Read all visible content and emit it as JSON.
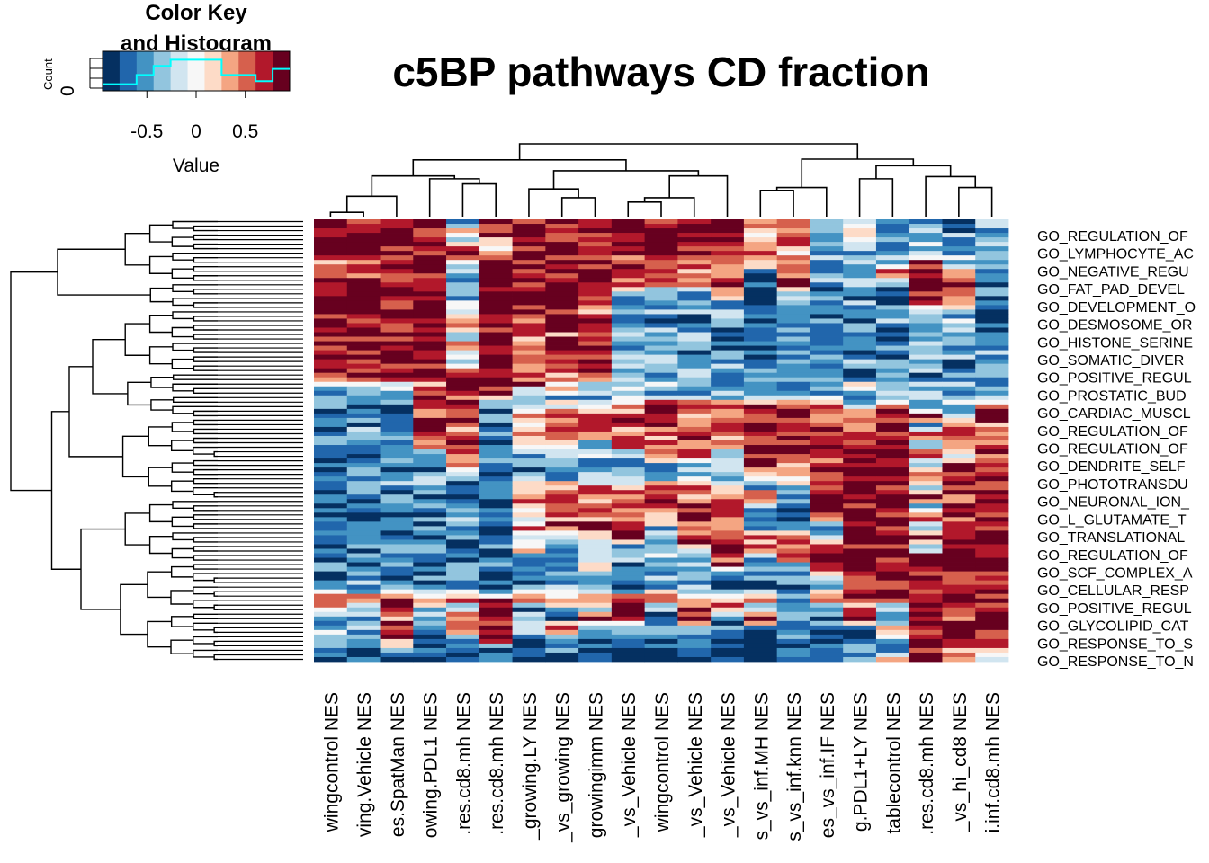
{
  "chart_data": {
    "type": "heatmap",
    "title": "c5BP pathways CD fraction",
    "color_key": {
      "title_line1": "Color Key",
      "title_line2": "and Histogram",
      "xlabel": "Value",
      "ylabel": "Count",
      "y_tick": "0",
      "x_ticks": [
        "-0.5",
        "0",
        "0.5"
      ],
      "x_tick_values": [
        -0.5,
        0,
        0.5
      ],
      "range": [
        -0.95,
        0.95
      ],
      "palette": [
        "#053061",
        "#2166ac",
        "#4393c3",
        "#92c5de",
        "#d1e5f0",
        "#f7f7f7",
        "#fddbc7",
        "#f4a582",
        "#d6604d",
        "#b2182b",
        "#67001f"
      ],
      "histogram_line_color": "#00ffff"
    },
    "columns": [
      "wingcontrol NES",
      "ving.Vehicle NES",
      "es.SpatMan NES",
      "owing.PDL1 NES",
      ".res.cd8.mh NES",
      ".res.cd8.mh NES",
      "_growing.LY NES",
      "_vs_growing NES",
      "growingimm NES",
      "_vs_Vehicle NES",
      "wingcontrol NES",
      "_vs_Vehicle NES",
      "_vs_Vehicle NES",
      "s_vs_inf.MH NES",
      "s_vs_inf.knn NES",
      "es_vs_inf.IF NES",
      "g.PDL1+LY NES",
      "tablecontrol NES",
      ".res.cd8.mh NES",
      "_vs_hi_cd8 NES",
      "i.inf.cd8.mh NES"
    ],
    "row_labels": [
      "GO_REGULATION_OF",
      "GO_LYMPHOCYTE_AC",
      "GO_NEGATIVE_REGU",
      "GO_FAT_PAD_DEVEL",
      "GO_DEVELOPMENT_O",
      "GO_DESMOSOME_OR",
      "GO_HISTONE_SERINE",
      "GO_SOMATIC_DIVER",
      "GO_POSITIVE_REGUL",
      "GO_PROSTATIC_BUD",
      "GO_CARDIAC_MUSCL",
      "GO_REGULATION_OF",
      "GO_REGULATION_OF",
      "GO_DENDRITE_SELF",
      "GO_PHOTOTRANSDU",
      "GO_NEURONAL_ION_",
      "GO_L_GLUTAMATE_T",
      "GO_TRANSLATIONAL",
      "GO_REGULATION_OF",
      "GO_SCF_COMPLEX_A",
      "GO_CELLULAR_RESP",
      "GO_POSITIVE_REGUL",
      "GO_GLYCOLIPID_CAT",
      "GO_RESPONSE_TO_S",
      "GO_RESPONSE_TO_N"
    ],
    "n_rows": 98,
    "values": [
      [
        0.8,
        0.8,
        0.8,
        0.8,
        -0.5,
        0.8,
        0.8,
        0.8,
        0.8,
        0.95,
        0.9,
        0.8,
        0.8,
        0.4,
        0.8,
        -0.3,
        -0.2,
        -0.5,
        -0.6,
        -0.6,
        -0.3
      ],
      [
        0.8,
        0.8,
        0.8,
        0.8,
        0.3,
        0.8,
        0.8,
        0.8,
        0.8,
        0.9,
        0.9,
        0.9,
        0.8,
        -0.1,
        0.5,
        -0.4,
        -0.2,
        -0.5,
        -0.4,
        -0.5,
        -0.4
      ],
      [
        0.8,
        0.8,
        0.8,
        0.8,
        -0.2,
        0.4,
        0.8,
        0.8,
        0.6,
        0.8,
        0.8,
        0.95,
        0.8,
        0.2,
        0.6,
        -0.5,
        -0.3,
        -0.5,
        -0.2,
        -0.3,
        -0.5
      ],
      [
        0.8,
        0.8,
        0.8,
        0.8,
        0.8,
        0.2,
        0.8,
        0.8,
        0.8,
        0.8,
        0.8,
        0.9,
        0.8,
        0.9,
        0.3,
        -0.6,
        -0.5,
        -0.4,
        -0.5,
        -0.5,
        -0.4
      ],
      [
        0.5,
        0.5,
        0.8,
        0.8,
        -0.3,
        0.8,
        0.8,
        0.8,
        0.6,
        0.6,
        0.6,
        0.6,
        0.8,
        0.1,
        0.6,
        -0.5,
        -0.4,
        -0.6,
        0.8,
        -0.2,
        -0.5
      ],
      [
        0.4,
        0.4,
        0.6,
        0.8,
        -0.5,
        0.8,
        0.8,
        0.8,
        0.8,
        0.5,
        0.5,
        0.5,
        0.6,
        -0.5,
        0.4,
        -0.6,
        -0.5,
        0.8,
        0.6,
        0.3,
        -0.4
      ],
      [
        0.8,
        0.8,
        0.9,
        0.8,
        -0.5,
        0.8,
        0.5,
        0.9,
        0.8,
        0.6,
        0.4,
        0.6,
        0.5,
        -0.7,
        0.9,
        -0.5,
        -0.6,
        -0.5,
        0.8,
        0.8,
        -0.6
      ],
      [
        0.8,
        0.9,
        0.95,
        0.9,
        -0.4,
        0.8,
        0.6,
        0.8,
        0.9,
        -0.4,
        -0.6,
        -0.4,
        0.5,
        -0.8,
        -0.4,
        -0.7,
        -0.5,
        -0.6,
        0.8,
        0.7,
        -0.6
      ],
      [
        0.8,
        0.8,
        0.8,
        0.8,
        -0.2,
        0.8,
        0.7,
        0.8,
        0.5,
        -0.7,
        -0.6,
        -0.5,
        -0.5,
        -0.6,
        -0.5,
        -0.6,
        -0.4,
        -0.8,
        0.5,
        0.6,
        -0.8
      ],
      [
        0.8,
        0.95,
        0.9,
        0.9,
        -0.3,
        0.8,
        0.8,
        0.7,
        0.6,
        -0.5,
        -0.3,
        -0.5,
        -0.3,
        -0.8,
        -0.6,
        -0.7,
        -0.8,
        -0.6,
        -0.6,
        -0.5,
        -0.9
      ],
      [
        0.8,
        0.8,
        0.8,
        0.8,
        0.5,
        0.9,
        0.6,
        0.8,
        0.7,
        -0.6,
        -0.6,
        -0.6,
        -0.5,
        -0.6,
        -0.5,
        -0.5,
        -0.5,
        -0.5,
        -0.6,
        -0.4,
        -0.6
      ],
      [
        0.8,
        0.8,
        0.8,
        0.8,
        -0.3,
        0.8,
        0.4,
        0.5,
        0.6,
        -0.5,
        -0.4,
        -0.4,
        -0.6,
        -0.7,
        -0.7,
        -0.6,
        -0.4,
        -0.9,
        -0.6,
        -0.6,
        -0.7
      ],
      [
        0.8,
        0.8,
        0.8,
        0.8,
        0.2,
        0.9,
        0.5,
        0.6,
        0.8,
        -0.3,
        -0.4,
        -0.5,
        -0.5,
        -0.7,
        -0.6,
        -0.6,
        -0.5,
        -0.6,
        -0.4,
        -0.5,
        -0.6
      ],
      [
        0.8,
        0.8,
        0.8,
        0.8,
        -0.4,
        0.8,
        0.8,
        0.6,
        0.6,
        -0.5,
        -0.5,
        -0.6,
        -0.5,
        -0.6,
        -0.5,
        -0.7,
        -0.5,
        -0.7,
        -0.5,
        -0.5,
        -0.5
      ],
      [
        0.8,
        0.8,
        0.8,
        0.8,
        -0.3,
        0.8,
        0.3,
        0.8,
        0.8,
        -0.4,
        -0.4,
        -0.3,
        -0.3,
        -0.6,
        -0.6,
        -0.6,
        -0.6,
        -0.6,
        -0.4,
        -0.6,
        -0.5
      ],
      [
        0.8,
        0.8,
        0.8,
        0.8,
        0.8,
        0.95,
        0.5,
        0.4,
        0.5,
        -0.5,
        -0.5,
        -0.5,
        -0.5,
        -0.5,
        -0.5,
        -0.5,
        -0.5,
        -0.5,
        -0.5,
        -0.5,
        -0.5
      ],
      [
        -0.3,
        -0.2,
        0.1,
        0.4,
        0.95,
        0.8,
        0.5,
        0.4,
        -0.2,
        -0.4,
        -0.3,
        -0.3,
        -0.3,
        -0.6,
        -0.5,
        -0.4,
        -0.2,
        -0.4,
        -0.3,
        -0.3,
        -0.4
      ],
      [
        -0.6,
        -0.4,
        -0.5,
        0.8,
        0.8,
        0.8,
        -0.3,
        -0.3,
        -0.4,
        -0.3,
        -0.5,
        -0.5,
        -0.5,
        -0.4,
        -0.4,
        -0.4,
        -0.4,
        -0.4,
        -0.4,
        -0.4,
        -0.4
      ],
      [
        -0.5,
        -0.6,
        -0.5,
        0.6,
        0.6,
        -0.6,
        -0.4,
        -0.2,
        -0.3,
        0.5,
        0.6,
        0.5,
        0.4,
        0.8,
        0.8,
        0.6,
        -0.6,
        0.6,
        -0.5,
        -0.3,
        0.6
      ],
      [
        -0.6,
        -0.6,
        -0.5,
        0.5,
        0.8,
        -0.6,
        0.6,
        0.5,
        0.5,
        0.4,
        0.5,
        0.4,
        0.6,
        0.8,
        0.8,
        0.5,
        0.6,
        0.8,
        0.8,
        -0.4,
        0.6
      ],
      [
        -0.7,
        -0.6,
        -0.6,
        0.8,
        0.4,
        -0.7,
        0.4,
        0.5,
        0.4,
        0.6,
        0.5,
        0.3,
        0.5,
        0.8,
        0.5,
        0.8,
        0.5,
        0.8,
        -0.6,
        0.6,
        0.5
      ],
      [
        -0.6,
        -0.5,
        -0.4,
        0.8,
        0.5,
        -0.6,
        0.5,
        0.6,
        0.3,
        0.5,
        0.4,
        0.5,
        0.4,
        0.8,
        0.8,
        0.8,
        0.5,
        0.8,
        0.8,
        0.8,
        0.5
      ],
      [
        -0.7,
        -0.6,
        -0.6,
        0.4,
        0.6,
        -0.7,
        -0.2,
        -0.3,
        -0.3,
        0.6,
        0.5,
        0.6,
        0.5,
        0.6,
        0.8,
        0.8,
        0.5,
        0.8,
        -0.6,
        0.6,
        0.4
      ],
      [
        -0.6,
        -0.6,
        -0.5,
        -0.3,
        0.4,
        -0.6,
        -0.4,
        -0.3,
        -0.4,
        -0.5,
        0.5,
        0.6,
        -0.4,
        0.8,
        0.8,
        0.5,
        0.8,
        0.8,
        0.8,
        -0.3,
        0.6
      ],
      [
        -0.8,
        -0.6,
        -0.6,
        -0.5,
        0.5,
        -0.7,
        -0.6,
        -0.4,
        -0.5,
        -0.5,
        -0.4,
        -0.5,
        -0.4,
        0.8,
        0.5,
        0.8,
        0.8,
        0.9,
        -0.6,
        0.8,
        0.5
      ],
      [
        -0.6,
        -0.5,
        -0.6,
        -0.5,
        -0.4,
        -0.6,
        -0.5,
        -0.6,
        -0.5,
        -0.6,
        -0.5,
        -0.4,
        -0.6,
        0.5,
        0.6,
        0.8,
        0.8,
        0.8,
        0.8,
        0.6,
        0.8
      ],
      [
        -0.7,
        -0.6,
        -0.5,
        -0.4,
        -0.5,
        -0.6,
        0.2,
        0.3,
        0.5,
        0.4,
        0.3,
        0.4,
        0.2,
        -0.5,
        -0.5,
        0.8,
        0.9,
        0.8,
        -0.6,
        0.8,
        0.8
      ],
      [
        -0.8,
        -0.7,
        -0.6,
        -0.6,
        -0.5,
        -0.7,
        0.5,
        0.5,
        0.5,
        0.5,
        0.5,
        0.5,
        0.5,
        0.6,
        -0.6,
        0.8,
        0.8,
        0.95,
        0.8,
        0.5,
        0.8
      ],
      [
        -0.7,
        -0.8,
        -0.7,
        -0.6,
        -0.6,
        -0.8,
        0.5,
        0.5,
        0.5,
        0.5,
        0.5,
        0.5,
        0.5,
        -0.5,
        -0.5,
        0.8,
        0.9,
        0.9,
        -0.6,
        0.6,
        0.8
      ],
      [
        -0.8,
        -0.8,
        -0.7,
        -0.7,
        -0.6,
        -0.7,
        -0.3,
        0.5,
        0.5,
        0.5,
        0.5,
        0.5,
        0.5,
        -0.6,
        -0.6,
        0.6,
        0.8,
        0.8,
        0.8,
        0.8,
        0.8
      ],
      [
        -0.7,
        -0.7,
        -0.7,
        -0.6,
        -0.6,
        -0.7,
        0.5,
        0.5,
        0.5,
        0.5,
        -0.4,
        0.5,
        0.5,
        -0.5,
        -0.6,
        -0.3,
        0.8,
        0.9,
        -0.5,
        0.6,
        0.9
      ],
      [
        -0.6,
        -0.6,
        -0.6,
        -0.6,
        -0.6,
        -0.6,
        -0.4,
        -0.3,
        0.5,
        0.5,
        -0.3,
        0.5,
        0.5,
        0.5,
        0.5,
        -0.4,
        0.8,
        0.9,
        0.8,
        0.8,
        0.8
      ],
      [
        -0.7,
        -0.7,
        -0.6,
        -0.6,
        -0.6,
        -0.7,
        0.4,
        -0.3,
        -0.4,
        -0.5,
        -0.3,
        0.5,
        0.5,
        0.5,
        0.5,
        0.6,
        0.8,
        0.8,
        -0.4,
        0.8,
        0.9
      ],
      [
        -0.6,
        -0.6,
        -0.6,
        -0.5,
        -0.6,
        -0.6,
        -0.5,
        -0.4,
        -0.3,
        -0.6,
        -0.4,
        -0.5,
        0.5,
        -0.6,
        0.5,
        0.8,
        0.9,
        0.8,
        0.8,
        0.8,
        0.9
      ],
      [
        -0.6,
        -0.6,
        -0.6,
        -0.6,
        -0.6,
        -0.6,
        -0.3,
        -0.3,
        0.5,
        -0.5,
        -0.3,
        -0.5,
        0.5,
        -0.4,
        -0.5,
        0.8,
        0.8,
        0.9,
        0.8,
        0.9,
        0.95
      ],
      [
        -0.7,
        -0.6,
        -0.6,
        -0.6,
        -0.6,
        -0.7,
        -0.5,
        -0.4,
        -0.6,
        -0.6,
        -0.5,
        -0.6,
        -0.6,
        -0.6,
        -0.5,
        -0.4,
        0.9,
        0.8,
        0.8,
        0.8,
        0.8
      ],
      [
        -0.5,
        -0.4,
        -0.5,
        -0.4,
        -0.5,
        -0.5,
        -0.5,
        -0.3,
        -0.4,
        -0.6,
        -0.6,
        -0.5,
        -0.6,
        -0.7,
        -0.6,
        -0.4,
        0.5,
        0.8,
        0.8,
        0.9,
        0.8
      ],
      [
        0.5,
        0.4,
        0.8,
        0.4,
        0.5,
        0.5,
        0.5,
        0.4,
        0.5,
        0.4,
        0.5,
        0.5,
        0.5,
        0.4,
        -0.4,
        0.5,
        0.8,
        0.8,
        0.9,
        0.8,
        0.8
      ],
      [
        0.4,
        -0.4,
        0.8,
        -0.4,
        -0.3,
        0.8,
        -0.5,
        -0.4,
        -0.4,
        0.8,
        -0.6,
        0.8,
        0.5,
        -0.5,
        -0.6,
        -0.5,
        0.5,
        -0.5,
        0.8,
        0.5,
        0.8
      ],
      [
        -0.5,
        -0.5,
        0.5,
        -0.5,
        0.6,
        0.8,
        -0.6,
        -0.6,
        0.8,
        0.8,
        -0.5,
        0.8,
        -0.7,
        0.9,
        -0.6,
        -0.6,
        0.8,
        -0.4,
        0.9,
        0.6,
        0.9
      ],
      [
        -0.3,
        -0.4,
        0.6,
        -0.6,
        0.5,
        0.6,
        -0.5,
        0.5,
        -0.6,
        -0.6,
        -0.4,
        -0.5,
        -0.6,
        -0.7,
        -0.7,
        -0.6,
        -0.6,
        0.5,
        0.8,
        0.8,
        0.8
      ],
      [
        -0.4,
        -0.5,
        0.9,
        -0.5,
        -0.4,
        0.7,
        -0.6,
        -0.6,
        -0.7,
        -0.7,
        -0.7,
        -0.7,
        -0.7,
        -0.8,
        -0.7,
        -0.7,
        -0.6,
        -0.5,
        0.9,
        0.8,
        0.8
      ],
      [
        -0.6,
        -0.6,
        -0.6,
        -0.6,
        -0.6,
        -0.6,
        -0.7,
        -0.7,
        -0.7,
        -0.8,
        -0.8,
        -0.8,
        -0.8,
        -0.8,
        -0.8,
        -0.8,
        -0.4,
        -0.5,
        0.9,
        0.5,
        0.6
      ],
      [
        -0.9,
        -0.9,
        -0.9,
        -0.8,
        -0.8,
        -0.8,
        -0.8,
        -0.9,
        -0.9,
        -0.9,
        -0.9,
        -0.9,
        -0.9,
        -0.9,
        -0.9,
        -0.9,
        -0.6,
        0.3,
        0.6,
        0.4,
        -0.4
      ]
    ],
    "row_dendrogram": "hierarchical clustering of rows",
    "col_dendrogram": "hierarchical clustering of columns"
  }
}
